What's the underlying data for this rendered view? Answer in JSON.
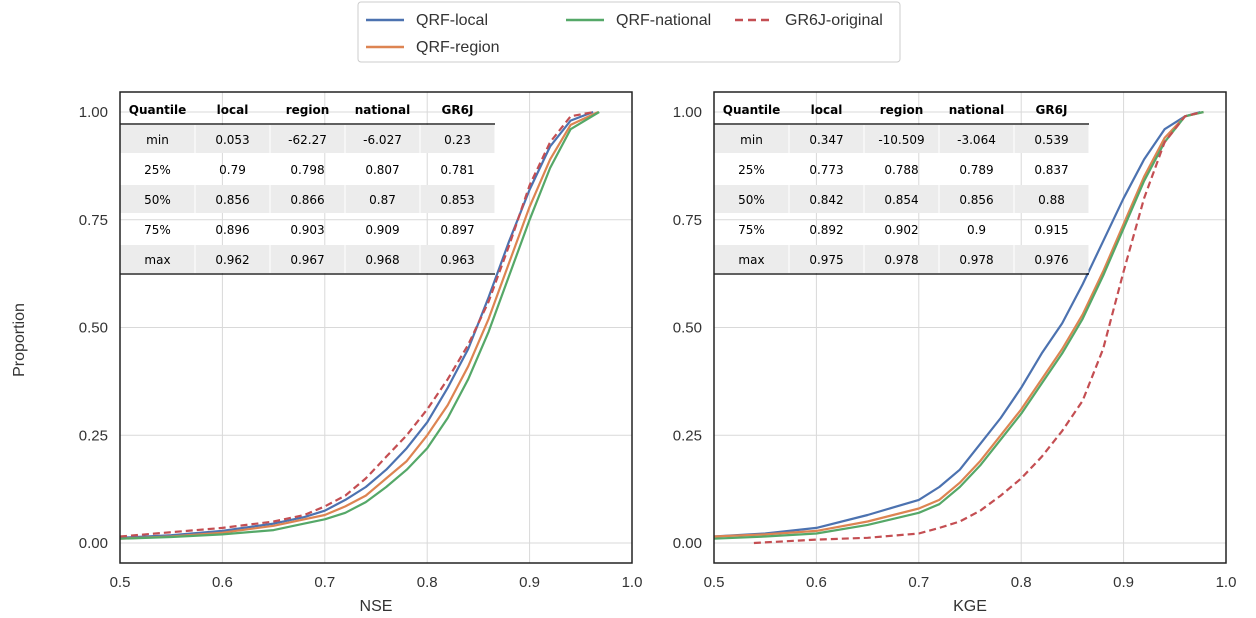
{
  "figure": {
    "ylabel": "Proportion",
    "colors": {
      "QRF-local": "#4c72b0",
      "QRF-region": "#dd8452",
      "QRF-national": "#55a868",
      "GR6J-original": "#c44e52"
    },
    "legend": {
      "placement": "top-center",
      "entries": [
        {
          "name": "QRF-local",
          "style": "solid"
        },
        {
          "name": "QRF-national",
          "style": "solid"
        },
        {
          "name": "GR6J-original",
          "style": "dashed"
        },
        {
          "name": "QRF-region",
          "style": "solid"
        }
      ]
    }
  },
  "chart_data": [
    {
      "type": "line",
      "xlabel": "NSE",
      "ylabel": "Proportion",
      "xlim": [
        0.5,
        1.0
      ],
      "ylim": [
        0.0,
        1.0
      ],
      "xticks": [
        "0.5",
        "0.6",
        "0.7",
        "0.8",
        "0.9",
        "1.0"
      ],
      "yticks": [
        "0.00",
        "0.25",
        "0.50",
        "0.75",
        "1.00"
      ],
      "grid": true,
      "table": {
        "columns": [
          "Quantile",
          "local",
          "region",
          "national",
          "GR6J"
        ],
        "rows": [
          [
            "min",
            "0.053",
            "-62.27",
            "-6.027",
            "0.23"
          ],
          [
            "25%",
            "0.79",
            "0.798",
            "0.807",
            "0.781"
          ],
          [
            "50%",
            "0.856",
            "0.866",
            "0.87",
            "0.853"
          ],
          [
            "75%",
            "0.896",
            "0.903",
            "0.909",
            "0.897"
          ],
          [
            "max",
            "0.962",
            "0.967",
            "0.968",
            "0.963"
          ]
        ]
      },
      "series": [
        {
          "name": "QRF-local",
          "style": "solid",
          "x": [
            0.5,
            0.55,
            0.6,
            0.65,
            0.68,
            0.7,
            0.72,
            0.74,
            0.76,
            0.78,
            0.8,
            0.82,
            0.84,
            0.86,
            0.88,
            0.9,
            0.92,
            0.94,
            0.962
          ],
          "y": [
            0.012,
            0.018,
            0.028,
            0.045,
            0.06,
            0.075,
            0.1,
            0.13,
            0.17,
            0.22,
            0.28,
            0.36,
            0.45,
            0.57,
            0.7,
            0.82,
            0.92,
            0.98,
            1.0
          ]
        },
        {
          "name": "QRF-region",
          "style": "solid",
          "x": [
            0.5,
            0.55,
            0.6,
            0.65,
            0.68,
            0.7,
            0.72,
            0.74,
            0.76,
            0.78,
            0.8,
            0.82,
            0.84,
            0.86,
            0.88,
            0.9,
            0.92,
            0.94,
            0.967
          ],
          "y": [
            0.01,
            0.015,
            0.024,
            0.04,
            0.055,
            0.065,
            0.085,
            0.11,
            0.15,
            0.19,
            0.25,
            0.32,
            0.41,
            0.52,
            0.65,
            0.78,
            0.89,
            0.97,
            1.0
          ]
        },
        {
          "name": "QRF-national",
          "style": "solid",
          "x": [
            0.5,
            0.55,
            0.6,
            0.65,
            0.68,
            0.7,
            0.72,
            0.74,
            0.76,
            0.78,
            0.8,
            0.82,
            0.84,
            0.86,
            0.88,
            0.9,
            0.92,
            0.94,
            0.968
          ],
          "y": [
            0.01,
            0.014,
            0.02,
            0.03,
            0.045,
            0.055,
            0.07,
            0.095,
            0.13,
            0.17,
            0.22,
            0.29,
            0.38,
            0.49,
            0.62,
            0.75,
            0.87,
            0.96,
            1.0
          ]
        },
        {
          "name": "GR6J-original",
          "style": "dashed",
          "x": [
            0.5,
            0.55,
            0.6,
            0.65,
            0.68,
            0.7,
            0.72,
            0.74,
            0.76,
            0.78,
            0.8,
            0.82,
            0.84,
            0.86,
            0.88,
            0.9,
            0.92,
            0.94,
            0.963
          ],
          "y": [
            0.015,
            0.025,
            0.035,
            0.05,
            0.065,
            0.085,
            0.11,
            0.15,
            0.2,
            0.25,
            0.31,
            0.38,
            0.46,
            0.56,
            0.69,
            0.83,
            0.93,
            0.99,
            1.0
          ]
        }
      ]
    },
    {
      "type": "line",
      "xlabel": "KGE",
      "ylabel": "",
      "xlim": [
        0.5,
        1.0
      ],
      "ylim": [
        0.0,
        1.0
      ],
      "xticks": [
        "0.5",
        "0.6",
        "0.7",
        "0.8",
        "0.9",
        "1.0"
      ],
      "yticks": [
        "0.00",
        "0.25",
        "0.50",
        "0.75",
        "1.00"
      ],
      "grid": true,
      "table": {
        "columns": [
          "Quantile",
          "local",
          "region",
          "national",
          "GR6J"
        ],
        "rows": [
          [
            "min",
            "0.347",
            "-10.509",
            "-3.064",
            "0.539"
          ],
          [
            "25%",
            "0.773",
            "0.788",
            "0.789",
            "0.837"
          ],
          [
            "50%",
            "0.842",
            "0.854",
            "0.856",
            "0.88"
          ],
          [
            "75%",
            "0.892",
            "0.902",
            "0.9",
            "0.915"
          ],
          [
            "max",
            "0.975",
            "0.978",
            "0.978",
            "0.976"
          ]
        ]
      },
      "series": [
        {
          "name": "QRF-local",
          "style": "solid",
          "x": [
            0.5,
            0.55,
            0.6,
            0.65,
            0.7,
            0.72,
            0.74,
            0.76,
            0.78,
            0.8,
            0.82,
            0.84,
            0.86,
            0.88,
            0.9,
            0.92,
            0.94,
            0.96,
            0.975
          ],
          "y": [
            0.015,
            0.022,
            0.035,
            0.065,
            0.1,
            0.13,
            0.17,
            0.23,
            0.29,
            0.36,
            0.44,
            0.51,
            0.6,
            0.7,
            0.8,
            0.89,
            0.96,
            0.99,
            1.0
          ]
        },
        {
          "name": "QRF-region",
          "style": "solid",
          "x": [
            0.5,
            0.55,
            0.6,
            0.65,
            0.7,
            0.72,
            0.74,
            0.76,
            0.78,
            0.8,
            0.82,
            0.84,
            0.86,
            0.88,
            0.9,
            0.92,
            0.94,
            0.96,
            0.978
          ],
          "y": [
            0.015,
            0.02,
            0.028,
            0.05,
            0.08,
            0.1,
            0.14,
            0.19,
            0.25,
            0.31,
            0.38,
            0.45,
            0.53,
            0.63,
            0.74,
            0.85,
            0.94,
            0.99,
            1.0
          ]
        },
        {
          "name": "QRF-national",
          "style": "solid",
          "x": [
            0.5,
            0.55,
            0.6,
            0.65,
            0.7,
            0.72,
            0.74,
            0.76,
            0.78,
            0.8,
            0.82,
            0.84,
            0.86,
            0.88,
            0.9,
            0.92,
            0.94,
            0.96,
            0.978
          ],
          "y": [
            0.01,
            0.015,
            0.022,
            0.042,
            0.07,
            0.09,
            0.13,
            0.18,
            0.24,
            0.3,
            0.37,
            0.44,
            0.52,
            0.62,
            0.73,
            0.84,
            0.93,
            0.99,
            1.0
          ]
        },
        {
          "name": "GR6J-original",
          "style": "dashed",
          "x": [
            0.539,
            0.6,
            0.65,
            0.7,
            0.72,
            0.74,
            0.76,
            0.78,
            0.8,
            0.82,
            0.84,
            0.86,
            0.88,
            0.9,
            0.92,
            0.94,
            0.96,
            0.976
          ],
          "y": [
            0.0,
            0.008,
            0.012,
            0.022,
            0.035,
            0.05,
            0.075,
            0.11,
            0.15,
            0.2,
            0.26,
            0.33,
            0.45,
            0.63,
            0.8,
            0.93,
            0.99,
            1.0
          ]
        }
      ]
    }
  ]
}
